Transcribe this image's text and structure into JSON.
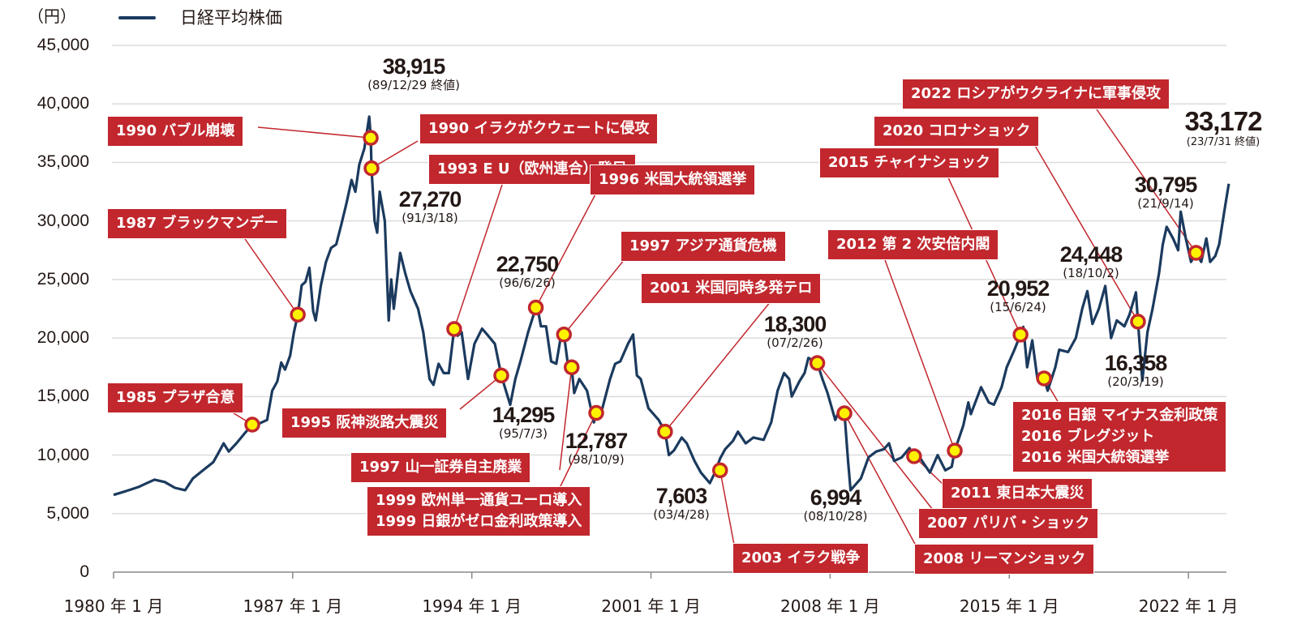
{
  "chart_data": {
    "type": "line",
    "unit_label": "（円）",
    "legend": [
      {
        "name": "日経平均株価",
        "color": "#1b3a5e"
      }
    ],
    "legend_placement": "top-left",
    "grid": true,
    "ylim": [
      0,
      45000
    ],
    "yticks": [
      "0",
      "5,000",
      "10,000",
      "15,000",
      "20,000",
      "25,000",
      "30,000",
      "35,000",
      "40,000",
      "45,000"
    ],
    "ytick_values": [
      0,
      5000,
      10000,
      15000,
      20000,
      25000,
      30000,
      35000,
      40000,
      45000
    ],
    "xlim": [
      1980,
      2023.9
    ],
    "xticks": [
      "1980 年 1 月",
      "1987 年 1 月",
      "1994 年 1 月",
      "2001 年 1 月",
      "2008 年 1 月",
      "2015 年 1 月",
      "2022 年 1 月"
    ],
    "xtick_values": [
      1980,
      1987,
      1994,
      2001,
      2008,
      2015,
      2022
    ],
    "colors": {
      "line": "#1b3a5e",
      "annotation": "#c1272d",
      "marker_fill": "#fff200",
      "grid": "#dcdcdc"
    },
    "series": [
      {
        "name": "日経平均株価",
        "points": [
          [
            1980.0,
            6600
          ],
          [
            1980.3,
            6800
          ],
          [
            1980.6,
            7000
          ],
          [
            1981.0,
            7300
          ],
          [
            1981.3,
            7600
          ],
          [
            1981.6,
            7900
          ],
          [
            1982.0,
            7700
          ],
          [
            1982.4,
            7200
          ],
          [
            1982.8,
            7000
          ],
          [
            1983.1,
            8000
          ],
          [
            1983.5,
            8700
          ],
          [
            1983.9,
            9400
          ],
          [
            1984.1,
            10200
          ],
          [
            1984.3,
            11000
          ],
          [
            1984.5,
            10300
          ],
          [
            1984.8,
            11000
          ],
          [
            1985.1,
            11800
          ],
          [
            1985.42,
            12600
          ],
          [
            1985.7,
            12700
          ],
          [
            1986.0,
            13000
          ],
          [
            1986.2,
            15500
          ],
          [
            1986.4,
            16300
          ],
          [
            1986.55,
            17900
          ],
          [
            1986.7,
            17300
          ],
          [
            1986.9,
            18500
          ],
          [
            1987.05,
            20500
          ],
          [
            1987.2,
            22000
          ],
          [
            1987.35,
            24500
          ],
          [
            1987.5,
            24800
          ],
          [
            1987.65,
            26000
          ],
          [
            1987.8,
            22300
          ],
          [
            1987.9,
            21500
          ],
          [
            1988.1,
            24500
          ],
          [
            1988.3,
            26500
          ],
          [
            1988.5,
            27700
          ],
          [
            1988.7,
            28000
          ],
          [
            1988.9,
            29700
          ],
          [
            1989.1,
            31500
          ],
          [
            1989.3,
            33500
          ],
          [
            1989.45,
            32500
          ],
          [
            1989.6,
            34800
          ],
          [
            1989.8,
            36200
          ],
          [
            1989.99,
            38915
          ],
          [
            1990.05,
            37100
          ],
          [
            1990.08,
            34500
          ],
          [
            1990.2,
            30000
          ],
          [
            1990.3,
            29000
          ],
          [
            1990.4,
            32500
          ],
          [
            1990.6,
            30000
          ],
          [
            1990.75,
            21500
          ],
          [
            1990.85,
            25000
          ],
          [
            1990.95,
            22500
          ],
          [
            1991.2,
            27270
          ],
          [
            1991.4,
            25500
          ],
          [
            1991.6,
            24000
          ],
          [
            1991.9,
            22500
          ],
          [
            1992.1,
            20500
          ],
          [
            1992.35,
            16500
          ],
          [
            1992.5,
            16000
          ],
          [
            1992.7,
            17800
          ],
          [
            1992.9,
            17000
          ],
          [
            1993.1,
            17000
          ],
          [
            1993.31,
            20770
          ],
          [
            1993.45,
            20200
          ],
          [
            1993.6,
            20500
          ],
          [
            1993.85,
            16500
          ],
          [
            1994.1,
            19500
          ],
          [
            1994.4,
            20800
          ],
          [
            1994.6,
            20300
          ],
          [
            1994.9,
            19500
          ],
          [
            1995.15,
            16800
          ],
          [
            1995.5,
            14295
          ],
          [
            1995.7,
            16500
          ],
          [
            1995.9,
            18000
          ],
          [
            1996.2,
            20500
          ],
          [
            1996.5,
            22600
          ],
          [
            1996.55,
            22750
          ],
          [
            1996.7,
            21000
          ],
          [
            1996.9,
            21000
          ],
          [
            1997.1,
            18000
          ],
          [
            1997.3,
            17800
          ],
          [
            1997.5,
            20400
          ],
          [
            1997.6,
            20300
          ],
          [
            1997.75,
            17800
          ],
          [
            1997.9,
            17500
          ],
          [
            1998.0,
            15300
          ],
          [
            1998.2,
            16500
          ],
          [
            1998.5,
            15500
          ],
          [
            1998.77,
            12787
          ],
          [
            1998.86,
            13600
          ],
          [
            1999.1,
            14000
          ],
          [
            1999.4,
            16500
          ],
          [
            1999.6,
            17800
          ],
          [
            1999.8,
            18000
          ],
          [
            2000.1,
            19500
          ],
          [
            2000.3,
            20300
          ],
          [
            2000.45,
            16800
          ],
          [
            2000.6,
            16500
          ],
          [
            2000.9,
            14000
          ],
          [
            2001.1,
            13500
          ],
          [
            2001.3,
            13000
          ],
          [
            2001.55,
            12000
          ],
          [
            2001.7,
            10000
          ],
          [
            2001.9,
            10400
          ],
          [
            2002.2,
            11500
          ],
          [
            2002.4,
            11000
          ],
          [
            2002.7,
            9500
          ],
          [
            2002.95,
            8500
          ],
          [
            2003.3,
            7603
          ],
          [
            2003.5,
            8500
          ],
          [
            2003.7,
            9700
          ],
          [
            2003.9,
            10500
          ],
          [
            2004.2,
            11200
          ],
          [
            2004.4,
            12000
          ],
          [
            2004.7,
            11000
          ],
          [
            2005.0,
            11500
          ],
          [
            2005.4,
            11300
          ],
          [
            2005.7,
            12800
          ],
          [
            2005.95,
            15500
          ],
          [
            2006.2,
            17000
          ],
          [
            2006.4,
            16500
          ],
          [
            2006.5,
            15000
          ],
          [
            2006.8,
            16300
          ],
          [
            2007.0,
            17000
          ],
          [
            2007.15,
            18300
          ],
          [
            2007.5,
            17860
          ],
          [
            2007.7,
            16500
          ],
          [
            2007.9,
            15300
          ],
          [
            2008.2,
            13000
          ],
          [
            2008.4,
            14000
          ],
          [
            2008.56,
            13570
          ],
          [
            2008.7,
            9500
          ],
          [
            2008.8,
            6994
          ],
          [
            2009.2,
            8000
          ],
          [
            2009.5,
            9800
          ],
          [
            2009.8,
            10300
          ],
          [
            2010.1,
            10500
          ],
          [
            2010.3,
            11000
          ],
          [
            2010.5,
            9500
          ],
          [
            2010.8,
            9800
          ],
          [
            2011.1,
            10600
          ],
          [
            2011.28,
            9900
          ],
          [
            2011.5,
            9800
          ],
          [
            2011.9,
            8500
          ],
          [
            2012.2,
            10000
          ],
          [
            2012.5,
            8700
          ],
          [
            2012.75,
            9000
          ],
          [
            2012.87,
            10380
          ],
          [
            2013.2,
            12500
          ],
          [
            2013.4,
            14500
          ],
          [
            2013.5,
            13500
          ],
          [
            2013.9,
            15800
          ],
          [
            2014.2,
            14500
          ],
          [
            2014.4,
            14300
          ],
          [
            2014.7,
            15800
          ],
          [
            2014.9,
            17500
          ],
          [
            2015.2,
            19000
          ],
          [
            2015.44,
            20290
          ],
          [
            2015.55,
            20952
          ],
          [
            2015.7,
            17500
          ],
          [
            2015.9,
            19800
          ],
          [
            2016.1,
            16500
          ],
          [
            2016.36,
            16550
          ],
          [
            2016.5,
            15500
          ],
          [
            2016.8,
            17500
          ],
          [
            2016.95,
            19000
          ],
          [
            2017.3,
            18800
          ],
          [
            2017.6,
            20000
          ],
          [
            2017.85,
            22500
          ],
          [
            2018.05,
            24000
          ],
          [
            2018.25,
            21200
          ],
          [
            2018.5,
            22500
          ],
          [
            2018.75,
            24448
          ],
          [
            2018.98,
            20000
          ],
          [
            2019.2,
            21500
          ],
          [
            2019.5,
            21000
          ],
          [
            2019.7,
            22000
          ],
          [
            2019.95,
            23900
          ],
          [
            2020.03,
            21400
          ],
          [
            2020.2,
            16358
          ],
          [
            2020.4,
            20500
          ],
          [
            2020.6,
            22500
          ],
          [
            2020.85,
            25500
          ],
          [
            2021.0,
            28000
          ],
          [
            2021.15,
            29500
          ],
          [
            2021.4,
            28500
          ],
          [
            2021.6,
            27500
          ],
          [
            2021.7,
            30795
          ],
          [
            2021.9,
            28500
          ],
          [
            2022.1,
            26500
          ],
          [
            2022.3,
            27280
          ],
          [
            2022.5,
            26500
          ],
          [
            2022.7,
            28500
          ],
          [
            2022.85,
            26500
          ],
          [
            2023.05,
            27000
          ],
          [
            2023.2,
            28000
          ],
          [
            2023.4,
            30800
          ],
          [
            2023.58,
            33172
          ]
        ]
      }
    ],
    "value_labels": [
      {
        "value": "38,915",
        "date": "(89/12/29 終値)"
      },
      {
        "value": "27,270",
        "date": "(91/3/18)"
      },
      {
        "value": "22,750",
        "date": "(96/6/26)"
      },
      {
        "value": "14,295",
        "date": "(95/7/3)"
      },
      {
        "value": "12,787",
        "date": "(98/10/9)"
      },
      {
        "value": "7,603",
        "date": "(03/4/28)"
      },
      {
        "value": "18,300",
        "date": "(07/2/26)"
      },
      {
        "value": "6,994",
        "date": "(08/10/28)"
      },
      {
        "value": "20,952",
        "date": "(15/6/24)"
      },
      {
        "value": "24,448",
        "date": "(18/10/2)"
      },
      {
        "value": "16,358",
        "date": "(20/3/19)"
      },
      {
        "value": "30,795",
        "date": "(21/9/14)"
      },
      {
        "value": "33,172",
        "date": "(23/7/31 終値)"
      }
    ],
    "annotations": [
      {
        "text": "1985 プラザ合意",
        "x": 1985.42,
        "y": 12600
      },
      {
        "text": "1987 ブラックマンデー",
        "x": 1987.2,
        "y": 22000
      },
      {
        "text": "1990 バブル崩壊",
        "x": 1990.05,
        "y": 37100
      },
      {
        "text": "1990 イラクがクウェートに侵攻",
        "x": 1990.08,
        "y": 34500
      },
      {
        "text": "1993 E U（欧州連合）発足",
        "x": 1993.31,
        "y": 20770
      },
      {
        "text": "1995 阪神淡路大震災",
        "x": 1995.15,
        "y": 16800
      },
      {
        "text": "1996 米国大統領選挙",
        "x": 1996.5,
        "y": 22600
      },
      {
        "text": "1997 アジア通貨危機",
        "x": 1997.6,
        "y": 20300
      },
      {
        "text": "1997 山一証券自主廃業",
        "x": 1997.9,
        "y": 17500
      },
      {
        "text": "1999 欧州単一通貨ユーロ導入\n1999 日銀がゼロ金利政策導入",
        "x": 1998.86,
        "y": 13600
      },
      {
        "text": "2001 米国同時多発テロ",
        "x": 2001.55,
        "y": 12000
      },
      {
        "text": "2003 イラク戦争",
        "x": 2003.7,
        "y": 8700
      },
      {
        "text": "2007 パリバ・ショック",
        "x": 2007.5,
        "y": 17860
      },
      {
        "text": "2008 リーマンショック",
        "x": 2008.56,
        "y": 13570
      },
      {
        "text": "2011 東日本大震災",
        "x": 2011.28,
        "y": 9900
      },
      {
        "text": "2012 第 2 次安倍内閣",
        "x": 2012.87,
        "y": 10380
      },
      {
        "text": "2015 チャイナショック",
        "x": 2015.44,
        "y": 20290
      },
      {
        "text": "2016 日銀 マイナス金利政策\n2016 ブレグジット\n2016 米国大統領選挙",
        "x": 2016.36,
        "y": 16550
      },
      {
        "text": "2020 コロナショック",
        "x": 2020.03,
        "y": 21400
      },
      {
        "text": "2022 ロシアがウクライナに軍事侵攻",
        "x": 2022.3,
        "y": 27280
      }
    ]
  }
}
